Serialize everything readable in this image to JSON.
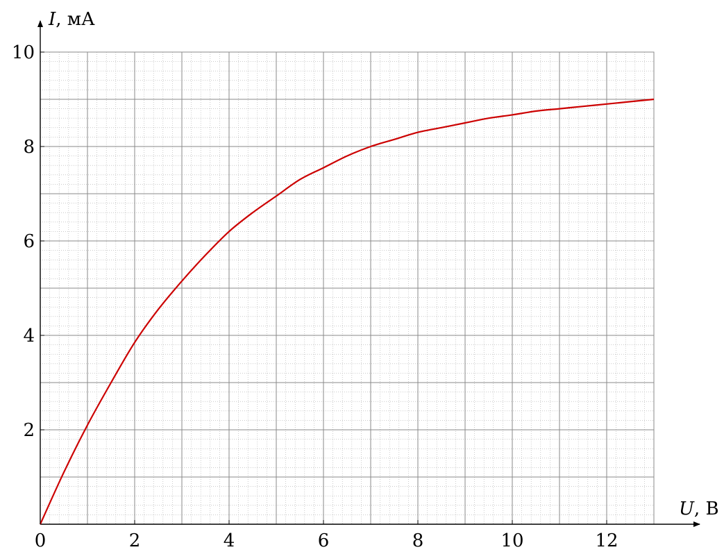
{
  "chart_data": {
    "type": "line",
    "xlabel": "U, В",
    "ylabel": "I, мА",
    "xlabel_var": "U",
    "xlabel_unit": ", В",
    "ylabel_var": "I",
    "ylabel_unit": ", мА",
    "xlim": [
      0,
      13
    ],
    "ylim": [
      0,
      10
    ],
    "x_ticks": [
      0,
      2,
      4,
      6,
      8,
      10,
      12
    ],
    "y_ticks": [
      2,
      4,
      6,
      8,
      10
    ],
    "grid": true,
    "major_grid_step_x": 1,
    "major_grid_step_y": 1,
    "minor_grid_step": 0.2,
    "series": [
      {
        "color": "#cc0000",
        "x": [
          0,
          0.5,
          1,
          1.5,
          2,
          2.5,
          3,
          3.5,
          4,
          4.5,
          5,
          5.5,
          6,
          6.5,
          7,
          7.5,
          8,
          8.5,
          9,
          9.5,
          10,
          10.5,
          11,
          11.5,
          12,
          12.5,
          13
        ],
        "y": [
          0,
          1.1,
          2.1,
          3.0,
          3.85,
          4.55,
          5.15,
          5.7,
          6.2,
          6.6,
          6.95,
          7.3,
          7.55,
          7.8,
          8.0,
          8.15,
          8.3,
          8.4,
          8.5,
          8.6,
          8.67,
          8.75,
          8.8,
          8.85,
          8.9,
          8.95,
          9.0
        ]
      }
    ]
  }
}
